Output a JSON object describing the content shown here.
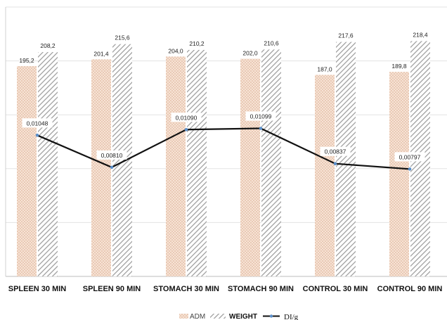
{
  "chart_data": {
    "type": "bar",
    "categories": [
      "SPLEEN 30 MIN",
      "SPLEEN 90 MIN",
      "STOMACH 30 MIN",
      "STOMACH 90 MIN",
      "CONTROL 30 MIN",
      "CONTROL 90 MIN"
    ],
    "series": [
      {
        "name": "ADM",
        "type": "bar",
        "pattern": "dotted",
        "color": "#f3d8c6",
        "values": [
          195.2,
          201.4,
          204.0,
          202.0,
          187.0,
          189.8
        ],
        "labels": [
          "195,2",
          "201,4",
          "204,0",
          "202,0",
          "187,0",
          "189,8"
        ]
      },
      {
        "name": "WEIGHT",
        "type": "bar",
        "pattern": "diagonal-hatch",
        "color": "#8a8a8a",
        "values": [
          208.2,
          215.6,
          210.2,
          210.6,
          217.6,
          218.4
        ],
        "labels": [
          "208,2",
          "215,6",
          "210,2",
          "210,6",
          "217,6",
          "218,4"
        ]
      },
      {
        "name": "DI/g",
        "type": "line",
        "axis": "secondary",
        "color": "#111111",
        "marker_color": "#5b8fc9",
        "values": [
          0.01048,
          0.0081,
          0.0109,
          0.01099,
          0.00837,
          0.00797
        ],
        "labels": [
          "0,01048",
          "0,00810",
          "0,01090",
          "0,01099",
          "0,00837",
          "0,00797"
        ]
      }
    ],
    "title": "",
    "xlabel": "",
    "ylabel": "",
    "ylim": [
      0,
      250
    ],
    "y2lim": [
      0,
      0.02
    ],
    "grid": true,
    "legend_position": "bottom"
  },
  "legend": {
    "items": [
      {
        "key": "adm",
        "label": "ADM"
      },
      {
        "key": "weight",
        "label": "WEIGHT"
      },
      {
        "key": "di",
        "label": "DI/g"
      }
    ]
  }
}
